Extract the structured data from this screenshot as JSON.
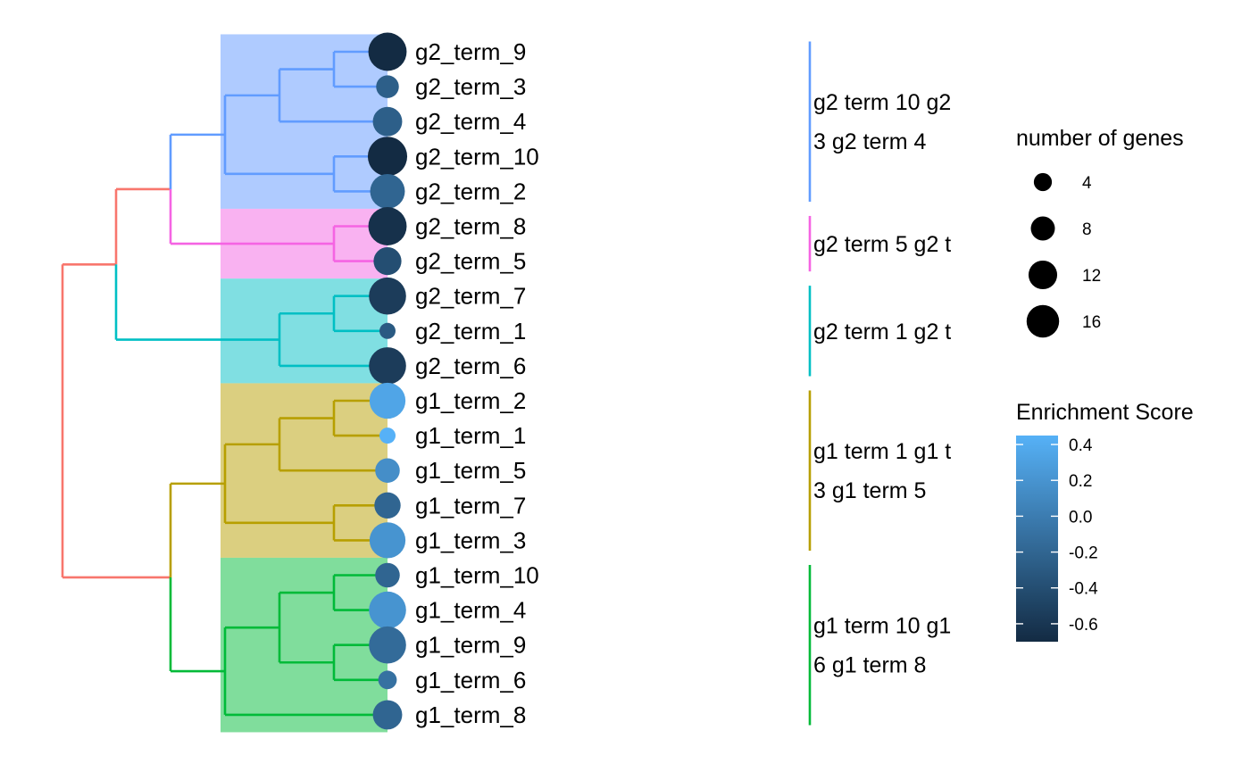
{
  "chart_data": {
    "type": "scatter",
    "subtype": "dendrogram-dotplot",
    "leaves": [
      {
        "term": "g2_term_9",
        "count": 17,
        "score": -0.7
      },
      {
        "term": "g2_term_3",
        "count": 6,
        "score": -0.25
      },
      {
        "term": "g2_term_4",
        "count": 10,
        "score": -0.25
      },
      {
        "term": "g2_term_10",
        "count": 18,
        "score": -0.7
      },
      {
        "term": "g2_term_2",
        "count": 14,
        "score": -0.2
      },
      {
        "term": "g2_term_8",
        "count": 17,
        "score": -0.65
      },
      {
        "term": "g2_term_5",
        "count": 9,
        "score": -0.4
      },
      {
        "term": "g2_term_7",
        "count": 16,
        "score": -0.55
      },
      {
        "term": "g2_term_1",
        "count": 3,
        "score": -0.3
      },
      {
        "term": "g2_term_6",
        "count": 16,
        "score": -0.55
      },
      {
        "term": "g1_term_2",
        "count": 15,
        "score": 0.35
      },
      {
        "term": "g1_term_1",
        "count": 3,
        "score": 0.45
      },
      {
        "term": "g1_term_5",
        "count": 7,
        "score": 0.15
      },
      {
        "term": "g1_term_7",
        "count": 8,
        "score": -0.2
      },
      {
        "term": "g1_term_3",
        "count": 15,
        "score": 0.2
      },
      {
        "term": "g1_term_10",
        "count": 7,
        "score": -0.2
      },
      {
        "term": "g1_term_4",
        "count": 16,
        "score": 0.2
      },
      {
        "term": "g1_term_9",
        "count": 16,
        "score": -0.15
      },
      {
        "term": "g1_term_6",
        "count": 4,
        "score": -0.1
      },
      {
        "term": "g1_term_8",
        "count": 10,
        "score": -0.2
      }
    ],
    "clusters": [
      {
        "leaves": [
          0,
          4
        ],
        "color": "#619CFF",
        "fill": "#AFCBFF",
        "lines": [
          "g2 term 10 g2",
          "3 g2 term 4"
        ]
      },
      {
        "leaves": [
          5,
          6
        ],
        "color": "#F564E3",
        "fill": "#F9B2F1",
        "lines": [
          "g2 term 5 g2 t"
        ]
      },
      {
        "leaves": [
          7,
          9
        ],
        "color": "#00BFC4",
        "fill": "#80DFE2",
        "lines": [
          "g2 term 1 g2 t"
        ]
      },
      {
        "leaves": [
          10,
          14
        ],
        "color": "#B79F00",
        "fill": "#DBCF80",
        "lines": [
          "g1 term 1 g1 t",
          "3 g1 term 5"
        ]
      },
      {
        "leaves": [
          15,
          19
        ],
        "color": "#00BA38",
        "fill": "#80DD9C",
        "lines": [
          "g1 term 10 g1",
          "6 g1 term 8"
        ]
      }
    ],
    "root_color": "#F8766D",
    "size_legend": {
      "title": "number of genes",
      "breaks": [
        4,
        8,
        12,
        16
      ],
      "labels": [
        "4",
        "8",
        "12",
        "16"
      ]
    },
    "color_legend": {
      "title": "Enrichment Score",
      "range": [
        -0.7,
        0.45
      ],
      "breaks": [
        0.4,
        0.2,
        0.0,
        -0.2,
        -0.4,
        -0.6
      ],
      "labels": [
        "0.4",
        "0.2",
        "0.0",
        "-0.2",
        "-0.4",
        "-0.6"
      ],
      "low_color": "#132B43",
      "high_color": "#56B1F7"
    }
  }
}
